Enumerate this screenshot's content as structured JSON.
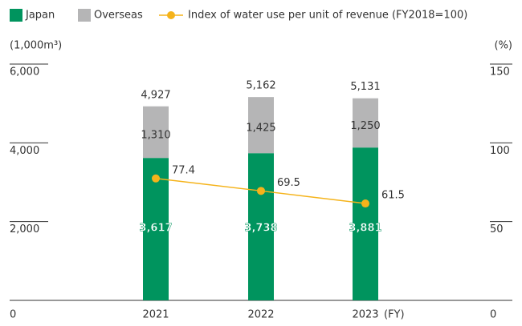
{
  "chart_data": {
    "type": "bar",
    "y_axis_label": "(1,000m³)",
    "y2_axis_label": "(%)",
    "categories": [
      "2021",
      "2022",
      "2023"
    ],
    "x_unit_label": "(FY)",
    "series": [
      {
        "name": "Japan",
        "color": "#00945e",
        "values": [
          3617,
          3738,
          3881
        ],
        "value_labels": [
          "3,617",
          "3,738",
          "3,881"
        ]
      },
      {
        "name": "Overseas",
        "color": "#b5b5b6",
        "values": [
          1310,
          1425,
          1250
        ],
        "value_labels": [
          "1,310",
          "1,425",
          "1,250"
        ]
      },
      {
        "name": "Index of water use per unit of revenue (FY2018=100)",
        "type": "line",
        "axis": "y2",
        "color": "#f5b31a",
        "values": [
          77.4,
          69.5,
          61.5
        ]
      }
    ],
    "totals": [
      4927,
      5162,
      5131
    ],
    "total_labels": [
      "4,927",
      "5,162",
      "5,131"
    ],
    "stacked": true,
    "ylim": [
      0,
      6000
    ],
    "yticks": [
      0,
      {
        "value": 2000,
        "label": "2,000"
      },
      {
        "value": 4000,
        "label": "4,000"
      },
      {
        "value": 6000,
        "label": "6,000"
      }
    ],
    "y2lim": [
      0,
      150
    ],
    "y2ticks": [
      0,
      50,
      100,
      150
    ]
  }
}
